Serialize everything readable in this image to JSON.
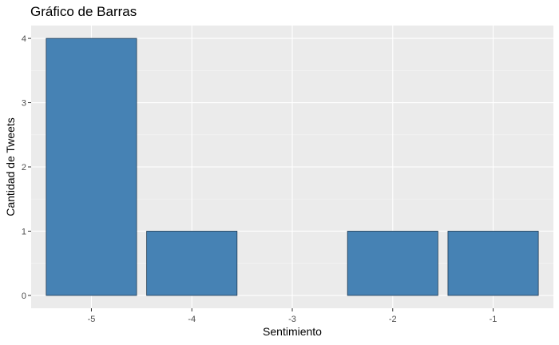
{
  "chart_data": {
    "type": "bar",
    "title": "Gráfico de Barras",
    "xlabel": "Sentimiento",
    "ylabel": "Cantidad de Tweets",
    "categories": [
      "-5",
      "-4",
      "-3",
      "-2",
      "-1"
    ],
    "values": [
      4,
      1,
      0,
      1,
      1
    ],
    "yticks": [
      0,
      1,
      2,
      3,
      4
    ],
    "ylim": [
      -0.2,
      4.2
    ],
    "grid": true,
    "legend": "none",
    "colors": {
      "bar_fill": "#4682B4",
      "bar_stroke": "#1f3a52",
      "panel_bg": "#EBEBEB",
      "grid_major": "#FFFFFF",
      "grid_minor": "#F5F5F5",
      "tick_mark": "#333333"
    }
  }
}
